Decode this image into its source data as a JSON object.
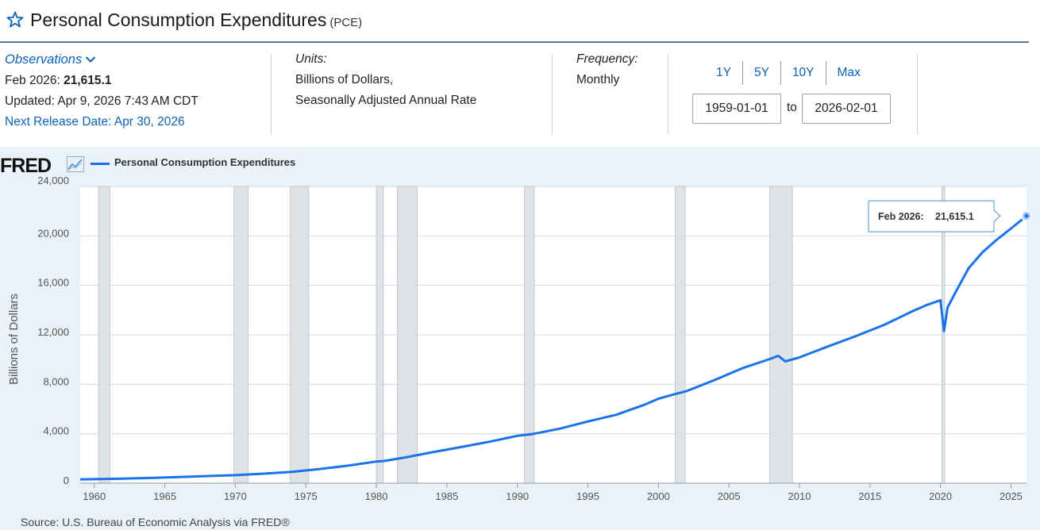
{
  "header": {
    "title": "Personal Consumption Expenditures",
    "code": "(PCE)"
  },
  "observations": {
    "heading": "Observations",
    "latest_label": "Feb 2026:",
    "latest_value": "21,615.1",
    "updated": "Updated: Apr 9, 2026 7:43 AM CDT",
    "next_release": "Next Release Date: Apr 30, 2026"
  },
  "units": {
    "heading": "Units:",
    "line1": "Billions of Dollars,",
    "line2": "Seasonally Adjusted Annual Rate"
  },
  "frequency": {
    "heading": "Frequency:",
    "value": "Monthly"
  },
  "range": {
    "buttons": [
      "1Y",
      "5Y",
      "10Y",
      "Max"
    ],
    "start": "1959-01-01",
    "to_label": "to",
    "end": "2026-02-01"
  },
  "colors": {
    "series": "#1a73e8",
    "recession": "#dfe3e7",
    "link": "#0b63b5"
  },
  "chart_data": {
    "type": "line",
    "title": "Personal Consumption Expenditures",
    "logo": "FRED",
    "legend": "Personal Consumption Expenditures",
    "ylabel": "Billions of Dollars",
    "xlabel": "",
    "ylim": [
      0,
      24000
    ],
    "xlim": [
      1959.0,
      2026.1
    ],
    "y_ticks": [
      0,
      4000,
      8000,
      12000,
      16000,
      20000,
      24000
    ],
    "y_tick_labels": [
      "0",
      "4,000",
      "8,000",
      "12,000",
      "16,000",
      "20,000",
      "24,000"
    ],
    "x_ticks": [
      1960,
      1965,
      1970,
      1975,
      1980,
      1985,
      1990,
      1995,
      2000,
      2005,
      2010,
      2015,
      2020,
      2025
    ],
    "x_tick_labels": [
      "1960",
      "1965",
      "1970",
      "1975",
      "1980",
      "1985",
      "1990",
      "1995",
      "2000",
      "2005",
      "2010",
      "2015",
      "2020",
      "2025"
    ],
    "recessions": [
      [
        1960.3,
        1961.1
      ],
      [
        1969.9,
        1970.9
      ],
      [
        1973.9,
        1975.2
      ],
      [
        1980.0,
        1980.5
      ],
      [
        1981.5,
        1982.9
      ],
      [
        1990.5,
        1991.2
      ],
      [
        2001.2,
        2001.9
      ],
      [
        2007.9,
        2009.5
      ],
      [
        2020.1,
        2020.3
      ]
    ],
    "series": [
      {
        "name": "Personal Consumption Expenditures",
        "x": [
          1959.0,
          1960.0,
          1962.0,
          1964.0,
          1966.0,
          1968.0,
          1970.0,
          1972.0,
          1974.0,
          1976.0,
          1978.0,
          1980.0,
          1980.5,
          1982.0,
          1984.0,
          1986.0,
          1988.0,
          1990.0,
          1991.0,
          1993.0,
          1995.0,
          1997.0,
          1999.0,
          2000.0,
          2001.0,
          2002.0,
          2004.0,
          2006.0,
          2007.9,
          2008.5,
          2009.0,
          2010.0,
          2012.0,
          2014.0,
          2016.0,
          2018.0,
          2019.0,
          2020.0,
          2020.25,
          2020.5,
          2021.0,
          2022.0,
          2023.0,
          2024.0,
          2025.0,
          2026.1
        ],
        "values": [
          310,
          330,
          375,
          425,
          500,
          580,
          650,
          770,
          910,
          1150,
          1420,
          1750,
          1790,
          2070,
          2510,
          2920,
          3350,
          3830,
          3960,
          4410,
          4990,
          5530,
          6340,
          6830,
          7150,
          7450,
          8350,
          9320,
          10040,
          10300,
          9850,
          10180,
          11050,
          11900,
          12800,
          13900,
          14400,
          14800,
          12300,
          14200,
          15300,
          17400,
          18700,
          19700,
          20600,
          21615.1
        ]
      }
    ],
    "tooltip": {
      "label": "Feb 2026:",
      "value": "21,615.1",
      "x": 2026.1,
      "y": 21615.1
    },
    "source": "Source: U.S. Bureau of Economic Analysis via FRED®"
  }
}
